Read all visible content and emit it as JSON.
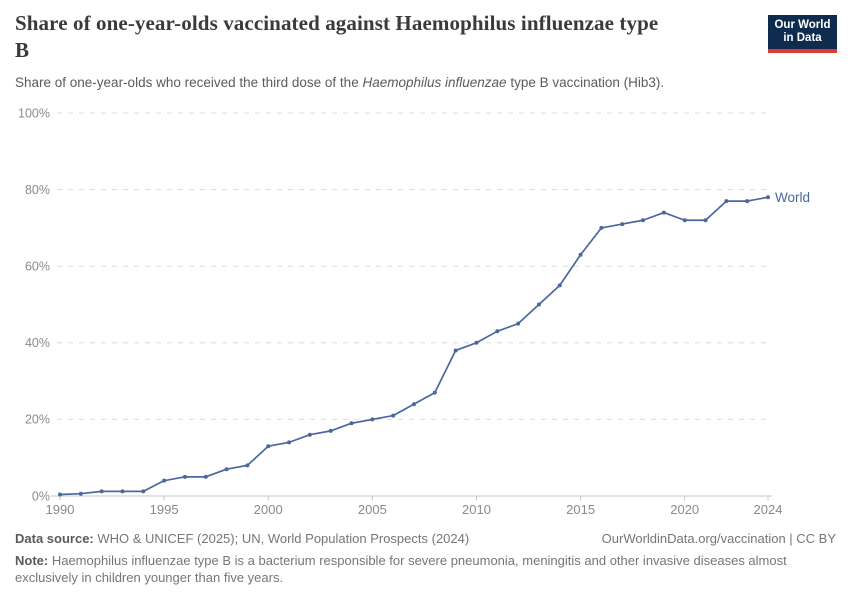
{
  "header": {
    "title_line1": "Share of one-year-olds vaccinated against Haemophilus influenzae type",
    "title_line2": "B",
    "subtitle_prefix": "Share of one-year-olds who received the third dose of the ",
    "subtitle_italic": "Haemophilus influenzae",
    "subtitle_suffix": " type B vaccination (Hib3).",
    "logo_line1": "Our World",
    "logo_line2": "in Data"
  },
  "chart_data": {
    "type": "line",
    "title": "Share of one-year-olds vaccinated against Haemophilus influenzae type B",
    "subtitle": "Share of one-year-olds who received the third dose of the Haemophilus influenzae type B vaccination (Hib3).",
    "xlabel": "",
    "ylabel": "",
    "xlim": [
      1990,
      2024
    ],
    "ylim": [
      0,
      100
    ],
    "grid": "horizontal-dashed",
    "legend_position": "end-of-line-label",
    "x_ticks": [
      {
        "value": 1990,
        "label": "1990"
      },
      {
        "value": 1995,
        "label": "1995"
      },
      {
        "value": 2000,
        "label": "2000"
      },
      {
        "value": 2005,
        "label": "2005"
      },
      {
        "value": 2010,
        "label": "2010"
      },
      {
        "value": 2015,
        "label": "2015"
      },
      {
        "value": 2020,
        "label": "2020"
      },
      {
        "value": 2024,
        "label": "2024"
      }
    ],
    "y_ticks": [
      {
        "value": 0,
        "label": "0%"
      },
      {
        "value": 20,
        "label": "20%"
      },
      {
        "value": 40,
        "label": "40%"
      },
      {
        "value": 60,
        "label": "60%"
      },
      {
        "value": 80,
        "label": "80%"
      },
      {
        "value": 100,
        "label": "100%"
      }
    ],
    "series": [
      {
        "name": "World",
        "x": [
          1990,
          1991,
          1992,
          1993,
          1994,
          1995,
          1996,
          1997,
          1998,
          1999,
          2000,
          2001,
          2002,
          2003,
          2004,
          2005,
          2006,
          2007,
          2008,
          2009,
          2010,
          2011,
          2012,
          2013,
          2014,
          2015,
          2016,
          2017,
          2018,
          2019,
          2020,
          2021,
          2022,
          2023,
          2024
        ],
        "values": [
          0.4,
          0.6,
          1.2,
          1.2,
          1.2,
          4,
          5,
          5,
          7,
          8,
          13,
          14,
          16,
          17,
          19,
          20,
          21,
          24,
          27,
          38,
          40,
          43,
          45,
          50,
          55,
          63,
          70,
          71,
          72,
          74,
          72,
          72,
          77,
          77,
          78
        ]
      }
    ]
  },
  "colors": {
    "line": "#4a679e",
    "grid": "#dcdcdc",
    "axis": "#c4c4c4",
    "tick_text": "#8a8a8a",
    "logo_bg": "#0d2c4e",
    "logo_bar": "#dc3a35"
  },
  "footer": {
    "datasource_label": "Data source:",
    "datasource_text": " WHO & UNICEF (2025); UN, World Population Prospects (2024)",
    "link_text": "OurWorldinData.org/vaccination | CC BY",
    "note_label": "Note:",
    "note_text": " Haemophilus influenzae type B is a bacterium responsible for severe pneumonia, meningitis and other invasive diseases almost exclusively in children younger than five years."
  }
}
